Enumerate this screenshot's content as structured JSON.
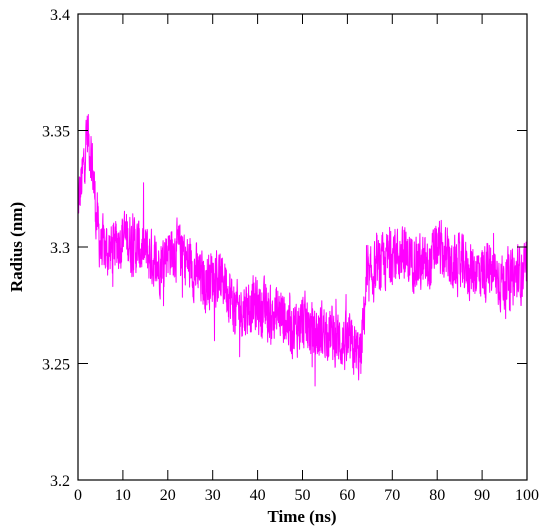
{
  "chart_data": {
    "type": "line",
    "title": "",
    "xlabel": "Time (ns)",
    "ylabel": "Radius (nm)",
    "xlim": [
      0,
      100
    ],
    "ylim": [
      3.2,
      3.4
    ],
    "x_ticks": [
      0,
      10,
      20,
      30,
      40,
      50,
      60,
      70,
      80,
      90,
      100
    ],
    "y_ticks": [
      3.2,
      3.25,
      3.3,
      3.35,
      3.4
    ],
    "x_tick_labels": [
      "0",
      "10",
      "20",
      "30",
      "40",
      "50",
      "60",
      "70",
      "80",
      "90",
      "100"
    ],
    "y_tick_labels": [
      "3.2",
      "3.25",
      "3.3",
      "3.35",
      "3.4"
    ],
    "grid": false,
    "series": [
      {
        "color": "#ff00ff",
        "trend_x": [
          0,
          1,
          2,
          3,
          4,
          5,
          7,
          10,
          13,
          15,
          18,
          20,
          23,
          25,
          28,
          30,
          33,
          35,
          38,
          40,
          43,
          45,
          48,
          50,
          53,
          55,
          58,
          60,
          62,
          63,
          64,
          66,
          68,
          70,
          73,
          75,
          78,
          80,
          83,
          85,
          88,
          90,
          93,
          95,
          98,
          100
        ],
        "trend_y": [
          3.318,
          3.33,
          3.35,
          3.34,
          3.315,
          3.3,
          3.298,
          3.305,
          3.3,
          3.298,
          3.292,
          3.3,
          3.298,
          3.292,
          3.285,
          3.288,
          3.285,
          3.272,
          3.275,
          3.275,
          3.27,
          3.272,
          3.265,
          3.268,
          3.262,
          3.265,
          3.26,
          3.258,
          3.255,
          3.252,
          3.28,
          3.29,
          3.292,
          3.298,
          3.295,
          3.295,
          3.29,
          3.3,
          3.292,
          3.292,
          3.29,
          3.29,
          3.288,
          3.285,
          3.288,
          3.29
        ],
        "noise_amplitude": 0.012
      }
    ]
  }
}
